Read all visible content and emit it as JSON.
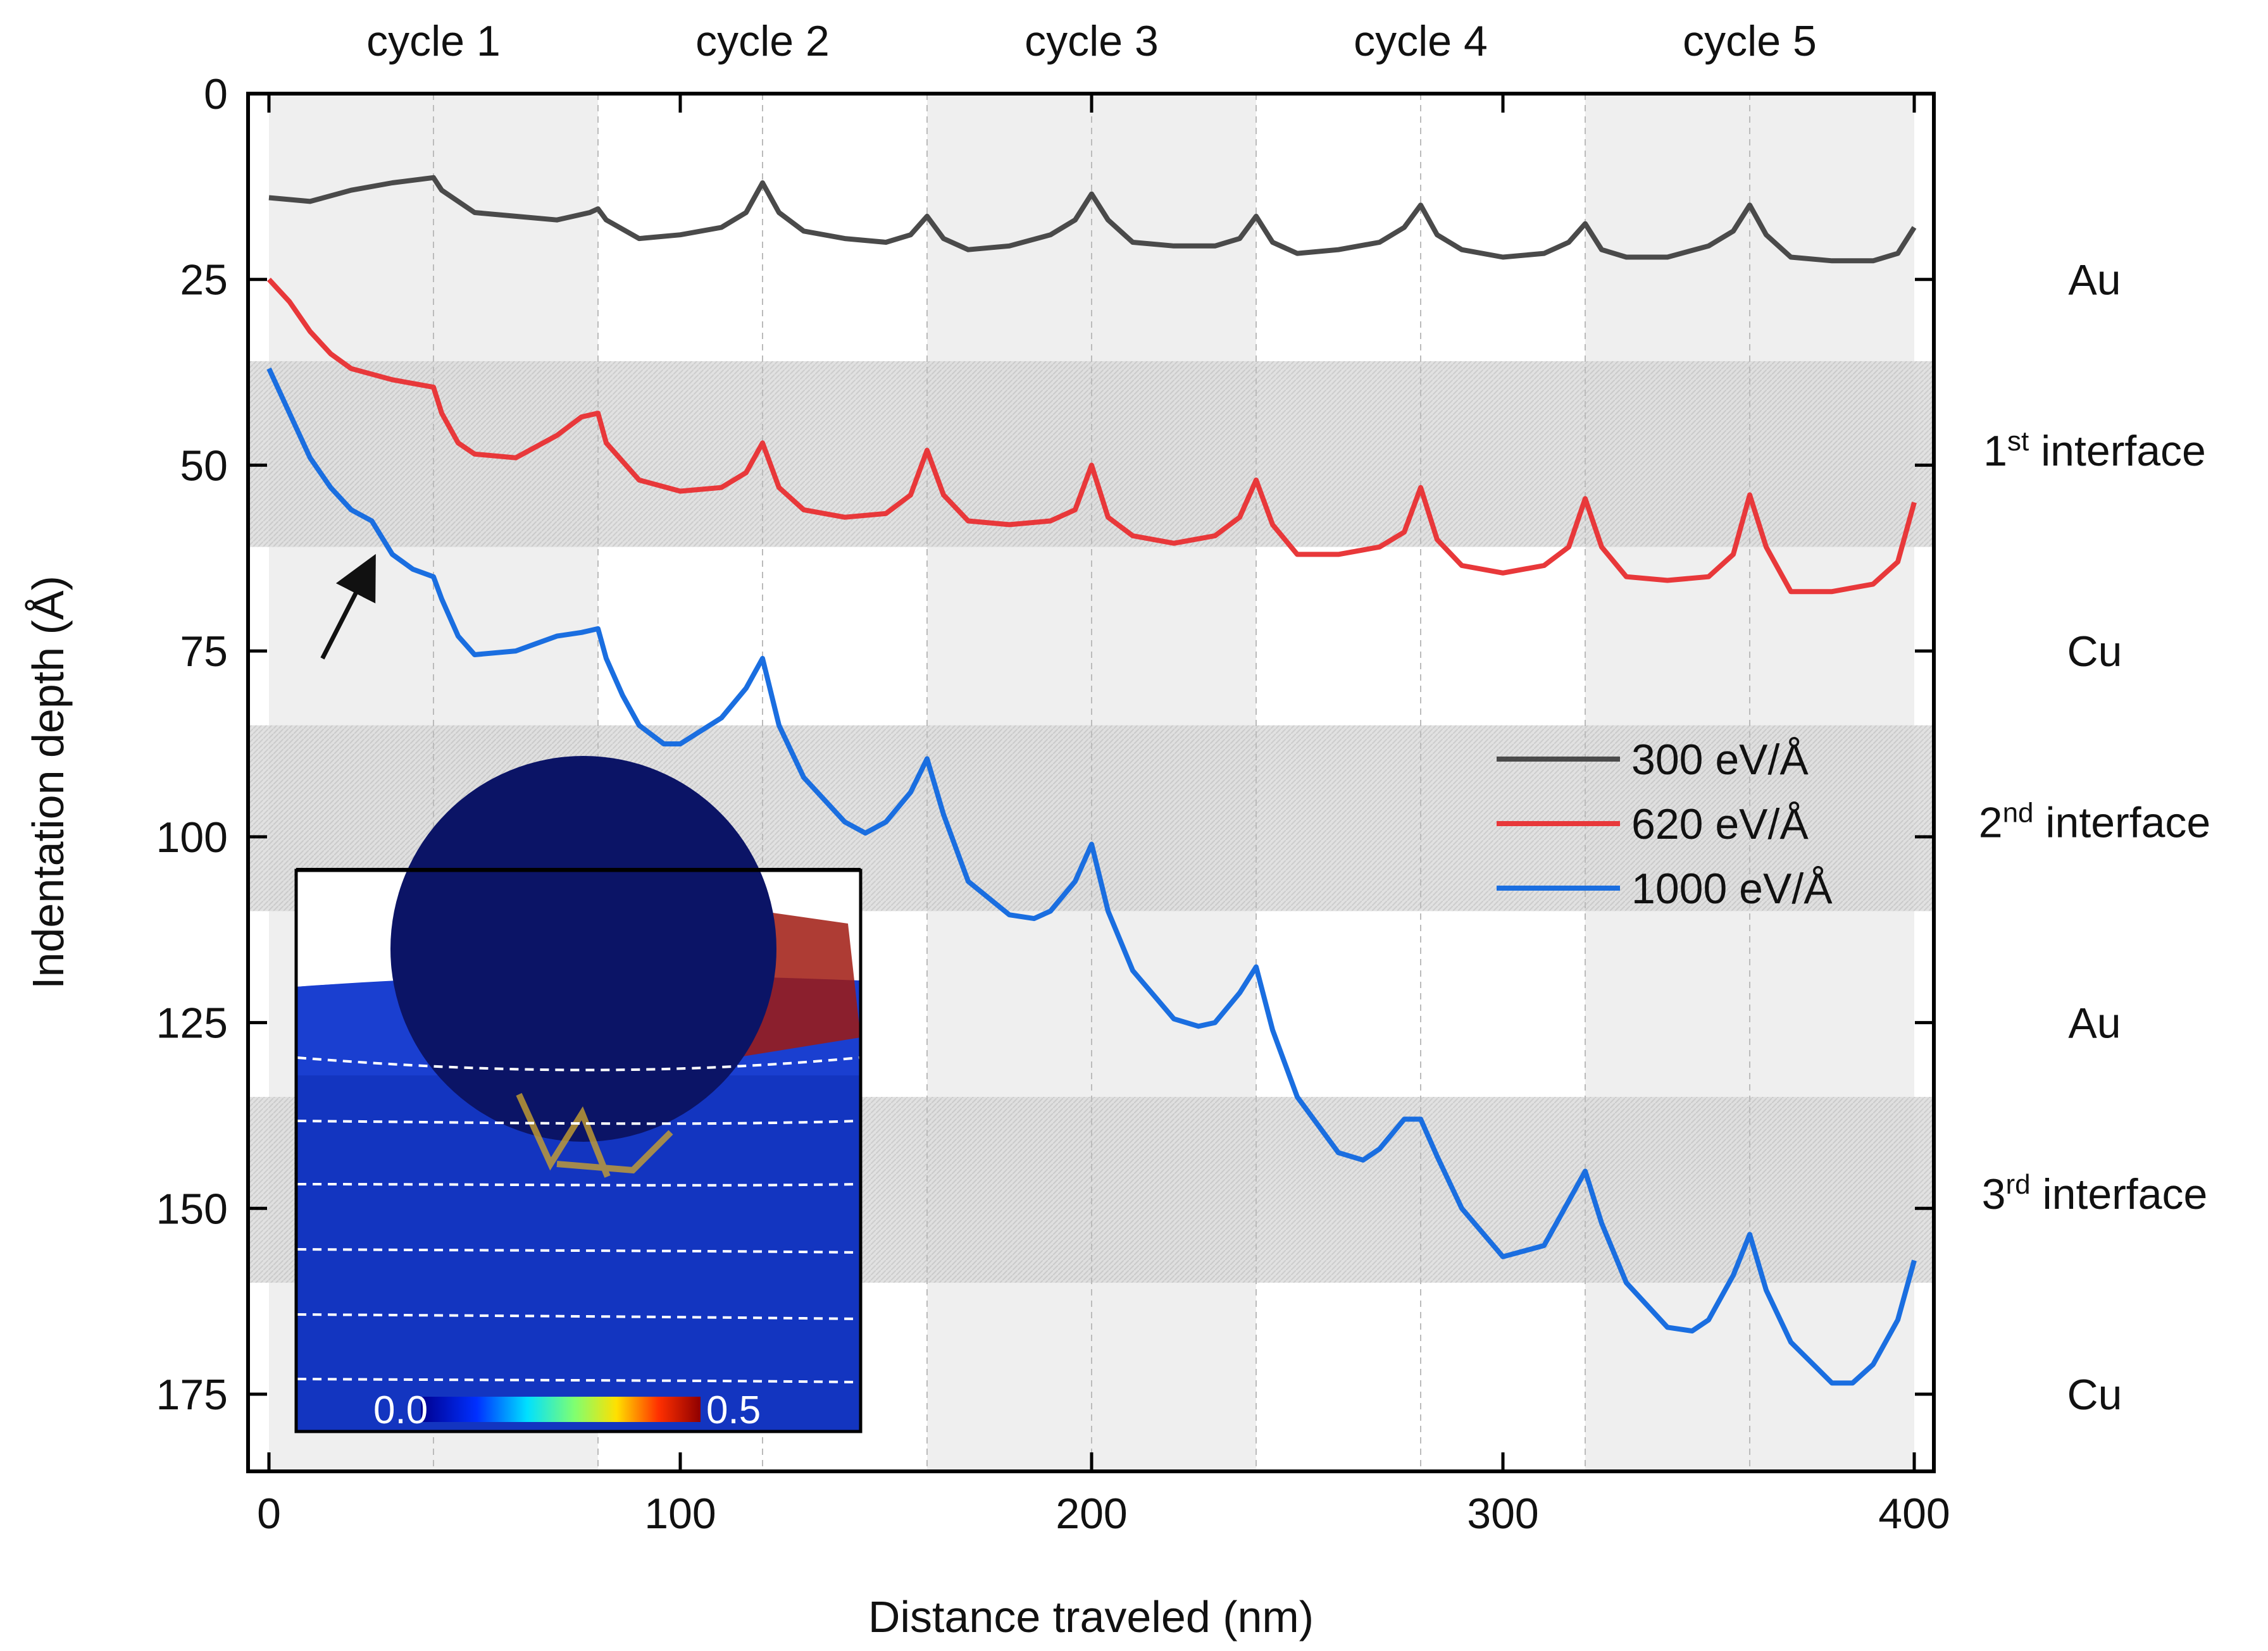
{
  "chart_data": {
    "type": "line",
    "title": "",
    "xlabel": "Distance traveled (nm)",
    "ylabel": "Indentation depth (Å)",
    "xlim": [
      -5,
      405
    ],
    "ylim": [
      185,
      0
    ],
    "x_ticks": [
      0,
      100,
      200,
      300,
      400
    ],
    "y_ticks": [
      0,
      25,
      50,
      75,
      100,
      125,
      150,
      175
    ],
    "x_tick_labels": [
      "0",
      "100",
      "200",
      "300",
      "400"
    ],
    "y_tick_labels": [
      "0",
      "25",
      "50",
      "75",
      "100",
      "125",
      "150",
      "175"
    ],
    "cycle_labels": [
      "cycle 1",
      "cycle 2",
      "cycle 3",
      "cycle 4",
      "cycle 5"
    ],
    "cycle_shading": [
      [
        0,
        80
      ],
      [
        160,
        240
      ],
      [
        320,
        400
      ]
    ],
    "vertical_dashed_lines": [
      40,
      80,
      120,
      160,
      200,
      240,
      280,
      320,
      360
    ],
    "interface_bands": [
      {
        "name": "1st interface",
        "from": 36,
        "to": 61
      },
      {
        "name": "2nd interface",
        "from": 85,
        "to": 110
      },
      {
        "name": "3rd interface",
        "from": 135,
        "to": 160
      }
    ],
    "layer_labels": [
      {
        "text": "Au",
        "depth": 25
      },
      {
        "text": "1",
        "sup": "st",
        "rest": " interface",
        "depth": 48
      },
      {
        "text": "Cu",
        "depth": 75
      },
      {
        "text": "2",
        "sup": "nd",
        "rest": " interface",
        "depth": 98
      },
      {
        "text": "Au",
        "depth": 125
      },
      {
        "text": "3",
        "sup": "rd",
        "rest": " interface",
        "depth": 148
      },
      {
        "text": "Cu",
        "depth": 175
      }
    ],
    "legend": {
      "position": "right-center"
    },
    "series": [
      {
        "name": "300 eV/Å",
        "color": "#4a4a4a",
        "points": [
          [
            0,
            14
          ],
          [
            10,
            14.5
          ],
          [
            20,
            13
          ],
          [
            30,
            12
          ],
          [
            40,
            11.3
          ],
          [
            42,
            13
          ],
          [
            50,
            16
          ],
          [
            60,
            16.5
          ],
          [
            70,
            17
          ],
          [
            78,
            16
          ],
          [
            80,
            15.5
          ],
          [
            82,
            17
          ],
          [
            90,
            19.5
          ],
          [
            100,
            19
          ],
          [
            110,
            18
          ],
          [
            116,
            16
          ],
          [
            120,
            12
          ],
          [
            124,
            16
          ],
          [
            130,
            18.5
          ],
          [
            140,
            19.5
          ],
          [
            150,
            20
          ],
          [
            156,
            19
          ],
          [
            160,
            16.5
          ],
          [
            164,
            19.5
          ],
          [
            170,
            21
          ],
          [
            180,
            20.5
          ],
          [
            190,
            19
          ],
          [
            196,
            17
          ],
          [
            200,
            13.5
          ],
          [
            204,
            17
          ],
          [
            210,
            20
          ],
          [
            220,
            20.5
          ],
          [
            230,
            20.5
          ],
          [
            236,
            19.5
          ],
          [
            240,
            16.5
          ],
          [
            244,
            20
          ],
          [
            250,
            21.5
          ],
          [
            260,
            21
          ],
          [
            270,
            20
          ],
          [
            276,
            18
          ],
          [
            280,
            15
          ],
          [
            284,
            19
          ],
          [
            290,
            21
          ],
          [
            300,
            22
          ],
          [
            310,
            21.5
          ],
          [
            316,
            20
          ],
          [
            320,
            17.5
          ],
          [
            324,
            21
          ],
          [
            330,
            22
          ],
          [
            340,
            22
          ],
          [
            350,
            20.5
          ],
          [
            356,
            18.5
          ],
          [
            360,
            15
          ],
          [
            364,
            19
          ],
          [
            370,
            22
          ],
          [
            380,
            22.5
          ],
          [
            390,
            22.5
          ],
          [
            396,
            21.5
          ],
          [
            400,
            18
          ]
        ]
      },
      {
        "name": "620 eV/Å",
        "color": "#e8383a",
        "points": [
          [
            0,
            25
          ],
          [
            5,
            28
          ],
          [
            10,
            32
          ],
          [
            15,
            35
          ],
          [
            20,
            37
          ],
          [
            30,
            38.5
          ],
          [
            40,
            39.5
          ],
          [
            42,
            43
          ],
          [
            46,
            47
          ],
          [
            50,
            48.5
          ],
          [
            60,
            49
          ],
          [
            70,
            46
          ],
          [
            76,
            43.5
          ],
          [
            80,
            43
          ],
          [
            82,
            47
          ],
          [
            90,
            52
          ],
          [
            100,
            53.5
          ],
          [
            110,
            53
          ],
          [
            116,
            51
          ],
          [
            120,
            47
          ],
          [
            124,
            53
          ],
          [
            130,
            56
          ],
          [
            140,
            57
          ],
          [
            150,
            56.5
          ],
          [
            156,
            54
          ],
          [
            160,
            48
          ],
          [
            164,
            54
          ],
          [
            170,
            57.5
          ],
          [
            180,
            58
          ],
          [
            190,
            57.5
          ],
          [
            196,
            56
          ],
          [
            200,
            50
          ],
          [
            204,
            57
          ],
          [
            210,
            59.5
          ],
          [
            220,
            60.5
          ],
          [
            230,
            59.5
          ],
          [
            236,
            57
          ],
          [
            240,
            52
          ],
          [
            244,
            58
          ],
          [
            250,
            62
          ],
          [
            260,
            62
          ],
          [
            270,
            61
          ],
          [
            276,
            59
          ],
          [
            280,
            53
          ],
          [
            284,
            60
          ],
          [
            290,
            63.5
          ],
          [
            300,
            64.5
          ],
          [
            310,
            63.5
          ],
          [
            316,
            61
          ],
          [
            320,
            54.5
          ],
          [
            324,
            61
          ],
          [
            330,
            65
          ],
          [
            340,
            65.5
          ],
          [
            350,
            65
          ],
          [
            356,
            62
          ],
          [
            360,
            54
          ],
          [
            364,
            61
          ],
          [
            370,
            67
          ],
          [
            380,
            67
          ],
          [
            390,
            66
          ],
          [
            396,
            63
          ],
          [
            400,
            55
          ]
        ]
      },
      {
        "name": "1000 eV/Å",
        "color": "#1a6ee0",
        "points": [
          [
            0,
            37
          ],
          [
            5,
            43
          ],
          [
            10,
            49
          ],
          [
            15,
            53
          ],
          [
            20,
            56
          ],
          [
            25,
            57.5
          ],
          [
            30,
            62
          ],
          [
            35,
            64
          ],
          [
            40,
            65
          ],
          [
            42,
            68
          ],
          [
            46,
            73
          ],
          [
            50,
            75.5
          ],
          [
            60,
            75
          ],
          [
            70,
            73
          ],
          [
            76,
            72.5
          ],
          [
            80,
            72
          ],
          [
            82,
            76
          ],
          [
            86,
            81
          ],
          [
            90,
            85
          ],
          [
            96,
            87.5
          ],
          [
            100,
            87.5
          ],
          [
            110,
            84
          ],
          [
            116,
            80
          ],
          [
            120,
            76
          ],
          [
            124,
            85
          ],
          [
            130,
            92
          ],
          [
            140,
            98
          ],
          [
            145,
            99.5
          ],
          [
            150,
            98
          ],
          [
            156,
            94
          ],
          [
            160,
            89.5
          ],
          [
            164,
            97
          ],
          [
            170,
            106
          ],
          [
            180,
            110.5
          ],
          [
            186,
            111
          ],
          [
            190,
            110
          ],
          [
            196,
            106
          ],
          [
            200,
            101
          ],
          [
            204,
            110
          ],
          [
            210,
            118
          ],
          [
            220,
            124.5
          ],
          [
            226,
            125.5
          ],
          [
            230,
            125
          ],
          [
            236,
            121
          ],
          [
            240,
            117.5
          ],
          [
            244,
            126
          ],
          [
            250,
            135
          ],
          [
            260,
            142.5
          ],
          [
            266,
            143.5
          ],
          [
            270,
            142
          ],
          [
            276,
            138
          ],
          [
            280,
            138
          ],
          [
            284,
            143
          ],
          [
            290,
            150
          ],
          [
            300,
            156.5
          ],
          [
            310,
            155
          ],
          [
            316,
            149
          ],
          [
            320,
            145
          ],
          [
            324,
            152
          ],
          [
            330,
            160
          ],
          [
            340,
            166
          ],
          [
            346,
            166.5
          ],
          [
            350,
            165
          ],
          [
            356,
            159
          ],
          [
            360,
            153.5
          ],
          [
            364,
            161
          ],
          [
            370,
            168
          ],
          [
            380,
            173.5
          ],
          [
            385,
            173.5
          ],
          [
            390,
            171
          ],
          [
            396,
            165
          ],
          [
            400,
            157
          ]
        ]
      }
    ],
    "annotations": [
      {
        "type": "arrow",
        "from": [
          13,
          76
        ],
        "to": [
          25,
          63
        ]
      },
      {
        "type": "inset-image",
        "description_colorbar": {
          "min_label": "0.0",
          "max_label": "0.5"
        }
      }
    ]
  }
}
